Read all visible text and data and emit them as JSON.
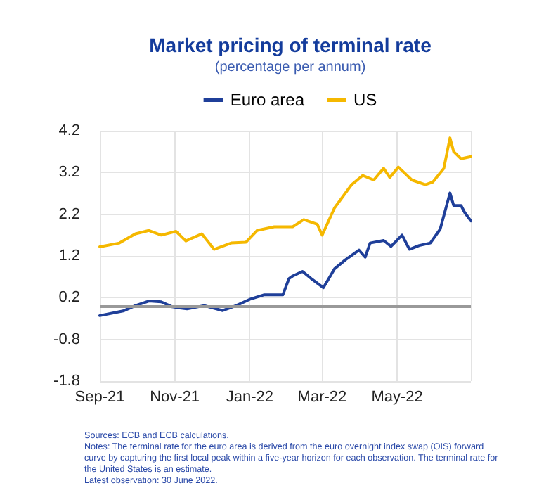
{
  "chart_data": {
    "type": "line",
    "title": "Market pricing of terminal rate",
    "subtitle": "(percentage per annum)",
    "series": [
      {
        "name": "Euro area",
        "color": "#1f3f99",
        "x": [
          "2021-09-01",
          "2021-09-20",
          "2021-09-30",
          "2021-10-11",
          "2021-10-21",
          "2021-10-30",
          "2021-11-11",
          "2021-11-25",
          "2021-12-10",
          "2021-12-21",
          "2022-01-01",
          "2022-01-13",
          "2022-01-28",
          "2022-02-02",
          "2022-02-05",
          "2022-02-13",
          "2022-02-20",
          "2022-03-02",
          "2022-03-11",
          "2022-03-20",
          "2022-03-31",
          "2022-04-05",
          "2022-04-09",
          "2022-04-20",
          "2022-04-26",
          "2022-05-05",
          "2022-05-11",
          "2022-05-19",
          "2022-05-28",
          "2022-06-05",
          "2022-06-13",
          "2022-06-16",
          "2022-06-22",
          "2022-06-25",
          "2022-06-30"
        ],
        "values": [
          -0.23,
          -0.12,
          0.01,
          0.12,
          0.1,
          -0.02,
          -0.07,
          0.01,
          -0.11,
          0.01,
          0.16,
          0.27,
          0.27,
          0.66,
          0.72,
          0.83,
          0.66,
          0.44,
          0.89,
          1.11,
          1.34,
          1.17,
          1.51,
          1.57,
          1.43,
          1.7,
          1.36,
          1.45,
          1.51,
          1.84,
          2.71,
          2.41,
          2.41,
          2.24,
          2.04
        ]
      },
      {
        "name": "US",
        "color": "#f5b800",
        "x": [
          "2021-09-01",
          "2021-09-17",
          "2021-09-30",
          "2021-10-11",
          "2021-10-21",
          "2021-11-02",
          "2021-11-10",
          "2021-11-23",
          "2021-12-03",
          "2021-12-17",
          "2021-12-29",
          "2022-01-07",
          "2022-01-21",
          "2022-02-05",
          "2022-02-14",
          "2022-02-25",
          "2022-03-01",
          "2022-03-11",
          "2022-03-25",
          "2022-04-03",
          "2022-04-12",
          "2022-04-20",
          "2022-04-25",
          "2022-05-02",
          "2022-05-13",
          "2022-05-24",
          "2022-05-30",
          "2022-06-08",
          "2022-06-13",
          "2022-06-16",
          "2022-06-22",
          "2022-06-30"
        ],
        "values": [
          1.42,
          1.51,
          1.73,
          1.81,
          1.7,
          1.79,
          1.56,
          1.73,
          1.36,
          1.51,
          1.53,
          1.81,
          1.9,
          1.9,
          2.07,
          1.96,
          1.7,
          2.35,
          2.91,
          3.13,
          3.02,
          3.3,
          3.08,
          3.33,
          3.02,
          2.91,
          2.97,
          3.3,
          4.03,
          3.7,
          3.53,
          3.58
        ]
      }
    ],
    "xlim": [
      "2021-09-01",
      "2022-06-30"
    ],
    "xticks": [
      {
        "value": "2021-09-01",
        "label": "Sep-21"
      },
      {
        "value": "2021-11-01",
        "label": "Nov-21"
      },
      {
        "value": "2022-01-01",
        "label": "Jan-22"
      },
      {
        "value": "2022-03-01",
        "label": "Mar-22"
      },
      {
        "value": "2022-05-01",
        "label": "May-22"
      },
      {
        "value": "2022-06-30",
        "label": null
      }
    ],
    "ylim": [
      -1.8,
      4.2
    ],
    "yticks": [
      -1.8,
      -0.8,
      0.2,
      1.2,
      2.2,
      3.2,
      4.2
    ],
    "ref_lines": [
      {
        "axis": "y",
        "value": 0,
        "color": "#999999"
      }
    ],
    "grid": true,
    "legend": "top",
    "marker": "none",
    "line_style": "solid",
    "annotations": [
      "Sources: ECB and ECB calculations.",
      "Notes: The terminal rate for the euro area is derived from the euro overnight index swap (OIS) forward curve by capturing the first local peak within a five-year horizon for each observation. The terminal rate for the United States is an estimate.",
      "Latest observation: 30 June 2022."
    ]
  }
}
